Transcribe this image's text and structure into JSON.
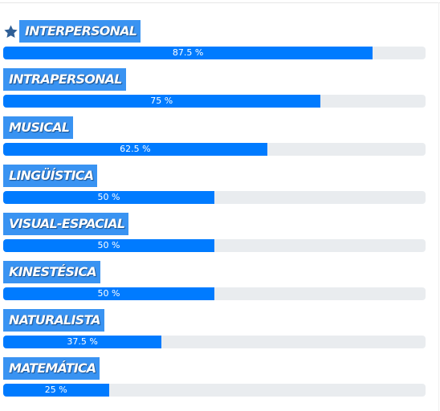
{
  "icons": {
    "top_marker": "star-icon"
  },
  "colors": {
    "label_bg": "#3993f2",
    "bar_fill": "#007bff",
    "bar_track": "#e9ecef",
    "star": "#2f5f96"
  },
  "items": [
    {
      "label": "INTERPERSONAL",
      "percent": 87.5,
      "text": "87.5 %"
    },
    {
      "label": "INTRAPERSONAL",
      "percent": 75,
      "text": "75 %"
    },
    {
      "label": "MUSICAL",
      "percent": 62.5,
      "text": "62.5 %"
    },
    {
      "label": "LINGÜÍSTICA",
      "percent": 50,
      "text": "50 %"
    },
    {
      "label": "VISUAL-ESPACIAL",
      "percent": 50,
      "text": "50 %"
    },
    {
      "label": "KINESTÉSICA",
      "percent": 50,
      "text": "50 %"
    },
    {
      "label": "NATURALISTA",
      "percent": 37.5,
      "text": "37.5 %"
    },
    {
      "label": "MATEMÁTICA",
      "percent": 25,
      "text": "25 %"
    }
  ]
}
